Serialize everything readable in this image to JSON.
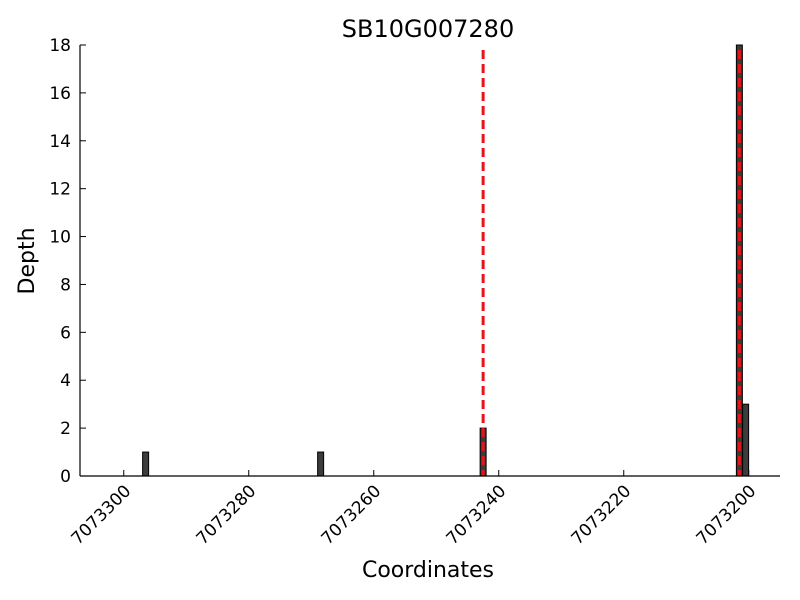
{
  "chart_data": {
    "type": "bar",
    "title": "SB10G007280",
    "xlabel": "Coordinates",
    "ylabel": "Depth",
    "xlim": [
      7073307,
      7073195
    ],
    "ylim": [
      0,
      18
    ],
    "x_reversed": true,
    "x_ticks": [
      7073300,
      7073280,
      7073260,
      7073240,
      7073220,
      7073200
    ],
    "x_tick_labels": [
      "7073300",
      "7073280",
      "7073260",
      "7073240",
      "7073220",
      "7073200"
    ],
    "y_ticks": [
      0,
      2,
      4,
      6,
      8,
      10,
      12,
      14,
      16,
      18
    ],
    "y_tick_labels": [
      "0",
      "2",
      "4",
      "6",
      "8",
      "10",
      "12",
      "14",
      "16",
      "18"
    ],
    "bar_color": "#3c3c3c",
    "series": [
      {
        "x": [
          7073296.5,
          7073268.5,
          7073242.5,
          7073201.5,
          7073200.5
        ],
        "values": [
          1,
          1,
          2,
          18,
          3
        ]
      }
    ],
    "reference_lines": [
      {
        "x": 7073242.5,
        "color": "#e8141a",
        "style": "dashed"
      },
      {
        "x": 7073201.5,
        "color": "#e8141a",
        "style": "dashed"
      }
    ],
    "grid": false,
    "legend": "none"
  }
}
